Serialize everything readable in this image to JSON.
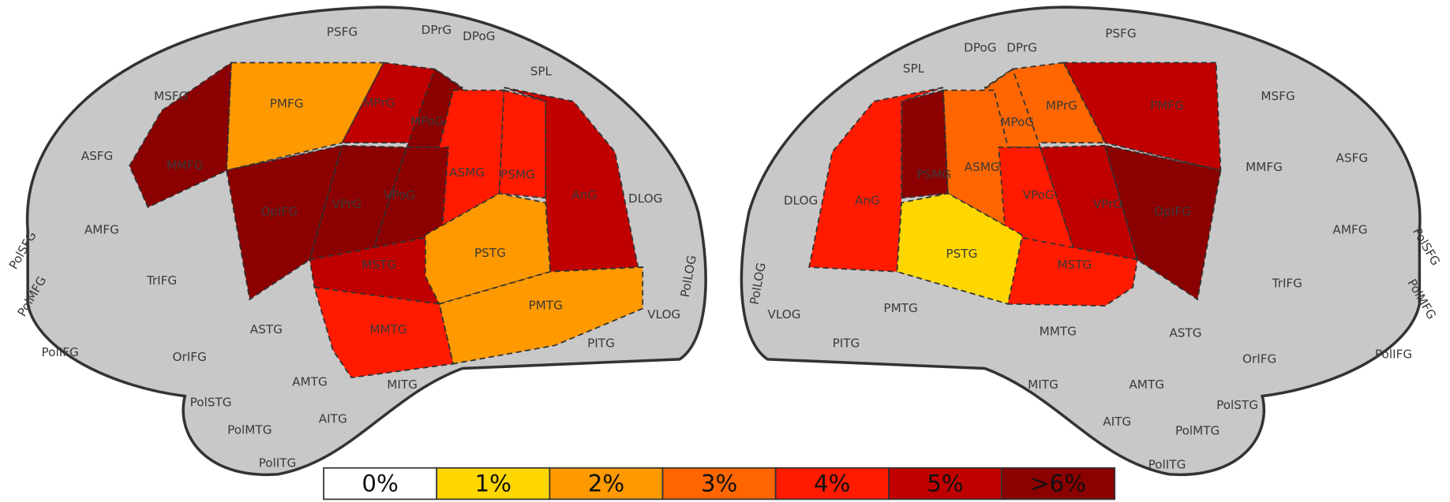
{
  "left_hemisphere": {
    "regions": [
      {
        "label": "PSFG"
      },
      {
        "label": "DPrG"
      },
      {
        "label": "DPoG"
      },
      {
        "label": "SPL"
      },
      {
        "label": "MSFG"
      },
      {
        "label": "PMFG",
        "color": "#ff9900"
      },
      {
        "label": "MPrG",
        "color": "#c00000"
      },
      {
        "label": "MPoG",
        "color": "#8b0000"
      },
      {
        "label": "ASFG"
      },
      {
        "label": "MMFG",
        "color": "#8b0000"
      },
      {
        "label": "ASMG",
        "color": "#ff1a00"
      },
      {
        "label": "PSMG",
        "color": "#ff1a00"
      },
      {
        "label": "AnG",
        "color": "#c00000"
      },
      {
        "label": "DLOG"
      },
      {
        "label": "OpIFG",
        "color": "#8b0000"
      },
      {
        "label": "VPrG",
        "color": "#8b0000"
      },
      {
        "label": "VPoG",
        "color": "#8b0000"
      },
      {
        "label": "AMFG"
      },
      {
        "label": "PolSFG"
      },
      {
        "label": "TrIFG"
      },
      {
        "label": "MSTG",
        "color": "#c00000"
      },
      {
        "label": "PSTG",
        "color": "#ff9900"
      },
      {
        "label": "PolLOG"
      },
      {
        "label": "PolMFG"
      },
      {
        "label": "PMTG",
        "color": "#ff9900"
      },
      {
        "label": "VLOG"
      },
      {
        "label": "MMTG",
        "color": "#ff1a00"
      },
      {
        "label": "ASTG"
      },
      {
        "label": "PolIFG"
      },
      {
        "label": "OrIFG"
      },
      {
        "label": "PITG"
      },
      {
        "label": "AMTG"
      },
      {
        "label": "MITG"
      },
      {
        "label": "PolSTG"
      },
      {
        "label": "AITG"
      },
      {
        "label": "PolMTG"
      },
      {
        "label": "PolITG"
      }
    ]
  },
  "right_hemisphere": {
    "regions": [
      {
        "label": "PSFG"
      },
      {
        "label": "DPoG"
      },
      {
        "label": "DPrG"
      },
      {
        "label": "SPL"
      },
      {
        "label": "MSFG"
      },
      {
        "label": "PMFG",
        "color": "#c00000"
      },
      {
        "label": "MPrG",
        "color": "#ff6600"
      },
      {
        "label": "MPoG",
        "color": "#ff6600"
      },
      {
        "label": "MMFG"
      },
      {
        "label": "ASFG"
      },
      {
        "label": "ASMG",
        "color": "#ff6600"
      },
      {
        "label": "PSMG",
        "color": "#8b0000"
      },
      {
        "label": "AnG",
        "color": "#ff1a00"
      },
      {
        "label": "DLOG"
      },
      {
        "label": "VPoG",
        "color": "#ff1a00"
      },
      {
        "label": "VPrG",
        "color": "#c00000"
      },
      {
        "label": "OpIFG",
        "color": "#8b0000"
      },
      {
        "label": "AMFG"
      },
      {
        "label": "PolSFG"
      },
      {
        "label": "TrIFG"
      },
      {
        "label": "PSTG",
        "color": "#ffd700"
      },
      {
        "label": "MSTG",
        "color": "#ff1a00"
      },
      {
        "label": "PolLOG"
      },
      {
        "label": "PMTG"
      },
      {
        "label": "PolMFG"
      },
      {
        "label": "VLOG"
      },
      {
        "label": "MMTG"
      },
      {
        "label": "ASTG"
      },
      {
        "label": "PITG"
      },
      {
        "label": "OrIFG"
      },
      {
        "label": "PolIFG"
      },
      {
        "label": "MITG"
      },
      {
        "label": "AMTG"
      },
      {
        "label": "PolSTG"
      },
      {
        "label": "AITG"
      },
      {
        "label": "PolMTG"
      },
      {
        "label": "PolITG"
      }
    ]
  },
  "legend": [
    {
      "label": "0%",
      "color": "#ffffff"
    },
    {
      "label": "1%",
      "color": "#ffd700"
    },
    {
      "label": "2%",
      "color": "#ff9900"
    },
    {
      "label": "3%",
      "color": "#ff6600"
    },
    {
      "label": "4%",
      "color": "#ff1a00"
    },
    {
      "label": "5%",
      "color": "#c00000"
    },
    {
      "label": ">6%",
      "color": "#8b0000"
    }
  ]
}
